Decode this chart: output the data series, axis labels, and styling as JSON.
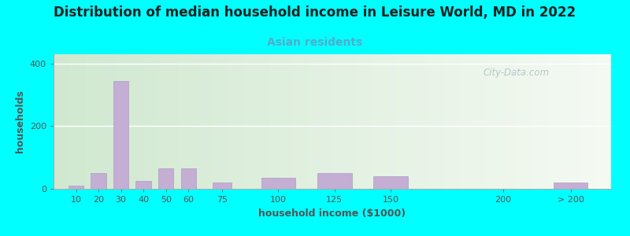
{
  "title": "Distribution of median household income in Leisure World, MD in 2022",
  "subtitle": "Asian residents",
  "xlabel": "household income ($1000)",
  "ylabel": "households",
  "background_outer": "#00FFFF",
  "bar_color": "#C4AED4",
  "bar_edge_color": "#B09DC0",
  "bar_positions": [
    10,
    20,
    30,
    40,
    50,
    60,
    75,
    100,
    125,
    150,
    200,
    230
  ],
  "bar_widths": [
    8,
    8,
    8,
    8,
    8,
    8,
    10,
    18,
    18,
    18,
    18,
    18
  ],
  "values": [
    10,
    50,
    345,
    25,
    65,
    65,
    20,
    35,
    50,
    40,
    0,
    20
  ],
  "xtick_positions": [
    10,
    20,
    30,
    40,
    50,
    60,
    75,
    100,
    125,
    150,
    200,
    230
  ],
  "xtick_labels": [
    "10",
    "20",
    "30",
    "40",
    "50",
    "60",
    "75",
    "100",
    "125",
    "150",
    "200",
    "> 200"
  ],
  "yticks": [
    0,
    200,
    400
  ],
  "ylim": [
    0,
    430
  ],
  "xlim": [
    0,
    248
  ],
  "watermark": "City-Data.com",
  "title_fontsize": 12,
  "subtitle_fontsize": 10,
  "axis_label_fontsize": 9,
  "tick_fontsize": 8,
  "grad_color_left": "#d0e8d0",
  "grad_color_right": "#f0f5ee"
}
